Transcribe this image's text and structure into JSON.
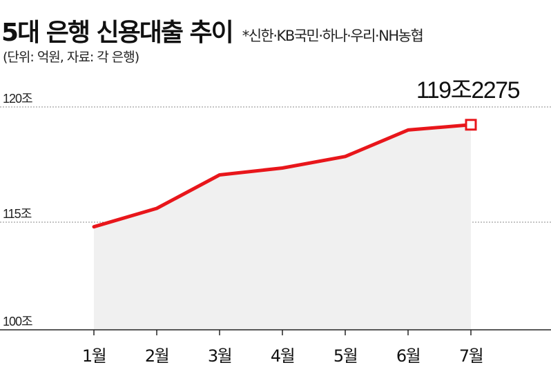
{
  "chart_data": {
    "type": "area",
    "title": "5대 은행 신용대출 추이",
    "subtitle": "*신한·KB국민·하나·우리·NH농협",
    "unit_note": "(단위: 억원, 자료: 각 은행)",
    "categories": [
      "1월",
      "2월",
      "3월",
      "4월",
      "5월",
      "6월",
      "7월"
    ],
    "values": [
      1148000,
      1156000,
      1170500,
      1173500,
      1178500,
      1190000,
      1192275
    ],
    "y_ticks": [
      {
        "value": 1000000,
        "label": "100조"
      },
      {
        "value": 1150000,
        "label": "115조"
      },
      {
        "value": 1200000,
        "label": "120조"
      }
    ],
    "ylim": [
      1000000,
      1200000
    ],
    "y_axis_break": true,
    "grid": "dashed",
    "annotation": {
      "text": "119조2275",
      "category": "7월"
    },
    "colors": {
      "line": "#e8161b",
      "area": "#f0f0f0",
      "marker_fill": "#ffffff",
      "grid": "#888888"
    }
  }
}
